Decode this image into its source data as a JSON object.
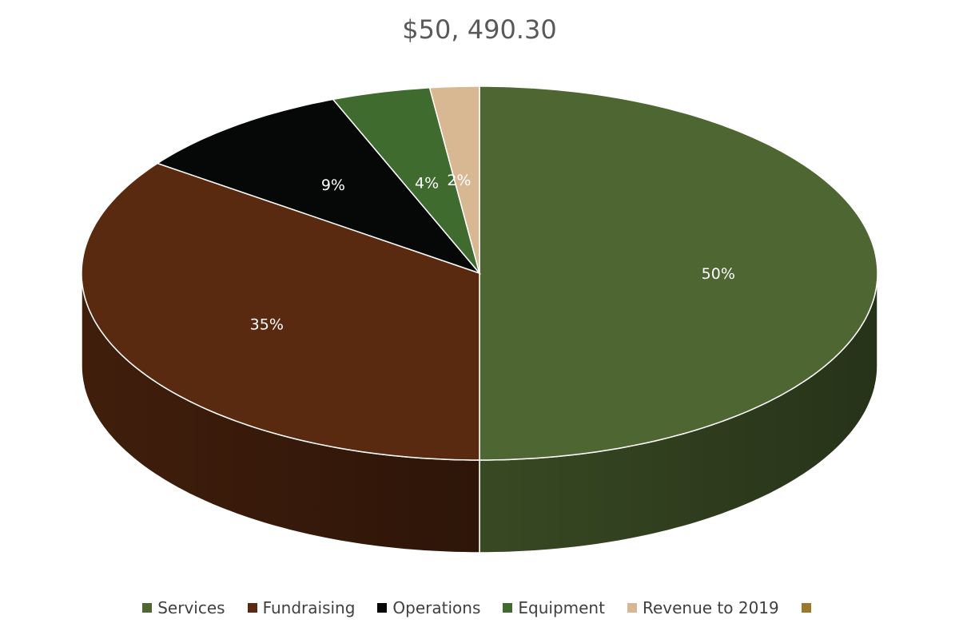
{
  "chart_data": {
    "type": "pie",
    "style": "3d",
    "title": "$50, 490.30",
    "legend_position": "bottom",
    "slices": [
      {
        "label": "Services",
        "value": 50,
        "data_label": "50%",
        "color": "#4e6631"
      },
      {
        "label": "Fundraising",
        "value": 35,
        "data_label": "35%",
        "color": "#5a2a10"
      },
      {
        "label": "Operations",
        "value": 9,
        "data_label": "9%",
        "color": "#050807"
      },
      {
        "label": "Equipment",
        "value": 4,
        "data_label": "4%",
        "color": "#3f6b2e"
      },
      {
        "label": "Revenue to 2019",
        "value": 2,
        "data_label": "2%",
        "color": "#d7b892"
      }
    ],
    "legend_extra": [
      {
        "label": "",
        "color": "#9a7a2a"
      }
    ]
  }
}
